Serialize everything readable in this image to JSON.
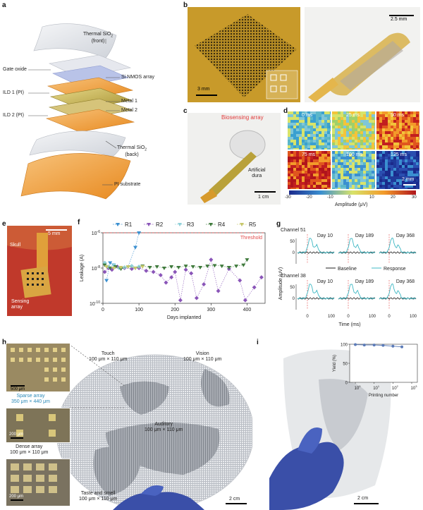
{
  "panel_labels": {
    "a": "a",
    "b": "b",
    "c": "c",
    "d": "d",
    "e": "e",
    "f": "f",
    "g": "g",
    "h": "h",
    "i": "i"
  },
  "a": {
    "layers": [
      {
        "label": "Thermal SiO",
        "sub": "2",
        "suffix": "",
        "note": "(front)"
      },
      {
        "label": "Gate oxide",
        "sub": "",
        "suffix": "",
        "note": ""
      },
      {
        "label": "Si NMOS array",
        "sub": "",
        "suffix": "",
        "note": ""
      },
      {
        "label": "ILD 1 (PI)",
        "sub": "",
        "suffix": "",
        "note": ""
      },
      {
        "label": "Metal 1",
        "sub": "",
        "suffix": "",
        "note": ""
      },
      {
        "label": "Metal 2",
        "sub": "",
        "suffix": "",
        "note": ""
      },
      {
        "label": "ILD 2 (PI)",
        "sub": "",
        "suffix": "",
        "note": ""
      },
      {
        "label": "Thermal SiO",
        "sub": "2",
        "suffix": "",
        "note": "(back)"
      },
      {
        "label": "PI substrate",
        "sub": "",
        "suffix": "",
        "note": ""
      }
    ],
    "colors": {
      "sio2": "#e4e6ea",
      "nmos": "#b9c3e8",
      "pi": "#f0a13a",
      "metal": "#c9b458",
      "substrate": "#f2a33c"
    }
  },
  "b": {
    "scale_left": "3 mm",
    "scale_right": "2.5 mm"
  },
  "c": {
    "title": "Biosensing array",
    "dura_line1": "Artificial",
    "dura_line2": "dura",
    "scale": "1 cm"
  },
  "d": {
    "frames": [
      "0 ms",
      "25 ms",
      "50 ms",
      "75 ms",
      "100 ms",
      "125 ms"
    ],
    "colorbar_ticks": [
      "-30",
      "-20",
      "-10",
      "0",
      "10",
      "20",
      "30"
    ],
    "colorbar_label": "Amplitude (μV)",
    "scale": "2 mm"
  },
  "e": {
    "scale": "5 mm",
    "skull": "Skull",
    "array_line1": "Sensing",
    "array_line2": "array"
  },
  "f": {
    "ylabel": "Leakage (A)",
    "xlabel": "Days implanted",
    "threshold_label": "Threshold",
    "xticks": [
      "0",
      "100",
      "200",
      "300",
      "400"
    ],
    "yticks": [
      {
        "base": "10",
        "exp": "-6"
      },
      {
        "base": "10",
        "exp": "-8"
      },
      {
        "base": "10",
        "exp": "-10"
      }
    ]
  },
  "g": {
    "channel_top": "Channel 51",
    "channel_bottom": "Channel 38",
    "days": [
      "Day 10",
      "Day 189",
      "Day 368"
    ],
    "ylabel": "Amplitude (μV)",
    "xlabel": "Time (ms)",
    "yticks": [
      "50",
      "0"
    ],
    "xticks": [
      "0",
      "100"
    ],
    "legend_baseline": "Baseline",
    "legend_response": "Response"
  },
  "h": {
    "scale_inset1": "500 μm",
    "sparse_line1": "Sparse array",
    "sparse_line2": "350 μm × 440 μm",
    "scale_inset2": "200 μm",
    "dense_line1": "Dense array",
    "dense_line2": "100 μm × 110 μm",
    "scale_inset3": "200 μm",
    "regions": [
      {
        "line1": "Touch",
        "line2": "100 μm × 110 μm"
      },
      {
        "line1": "Vision",
        "line2": "100 μm × 110 μm"
      },
      {
        "line1": "Auditory",
        "line2": "100 μm × 110 μm"
      },
      {
        "line1": "Taste and smell",
        "line2": "100 μm × 110 μm"
      }
    ],
    "scale": "2 cm"
  },
  "i": {
    "ylabel": "Yield (%)",
    "xlabel": "Printing number",
    "yticks": [
      "100",
      "50",
      "0"
    ],
    "xticks": [
      {
        "base": "10",
        "exp": "0"
      },
      {
        "base": "10",
        "exp": "1"
      },
      {
        "base": "10",
        "exp": "2"
      },
      {
        "base": "10",
        "exp": "3"
      }
    ],
    "scale": "2 cm"
  },
  "chart_data": [
    {
      "panel": "f",
      "type": "scatter",
      "ylabel": "Leakage (A)",
      "xlabel": "Days implanted",
      "xlim": [
        0,
        450
      ],
      "ylim": [
        1e-10,
        1e-06
      ],
      "log_y": true,
      "threshold": 1e-06,
      "legend_placement": "top",
      "series": [
        {
          "name": "R1",
          "color": "#3a8fd0",
          "points": [
            [
              10,
              2e-09
            ],
            [
              20,
              2e-08
            ],
            [
              30,
              1.5e-08
            ],
            [
              50,
              1.1e-08
            ],
            [
              70,
              1.2e-08
            ],
            [
              90,
              1.5e-07
            ],
            [
              100,
              1e-06
            ]
          ]
        },
        {
          "name": "R2",
          "color": "#8a55b8",
          "points": [
            [
              5,
              6e-09
            ],
            [
              15,
              1e-08
            ],
            [
              25,
              8e-09
            ],
            [
              40,
              1.2e-08
            ],
            [
              60,
              1e-08
            ],
            [
              80,
              9e-09
            ],
            [
              100,
              1e-08
            ],
            [
              120,
              7e-09
            ],
            [
              140,
              6e-09
            ],
            [
              160,
              4e-09
            ],
            [
              175,
              1.5e-09
            ],
            [
              190,
              3e-09
            ],
            [
              200,
              6e-09
            ],
            [
              215,
              1.5e-10
            ],
            [
              230,
              8e-09
            ],
            [
              245,
              5e-09
            ],
            [
              260,
              2e-10
            ],
            [
              280,
              1.2e-09
            ],
            [
              300,
              3e-08
            ],
            [
              320,
              5e-10
            ],
            [
              350,
              9e-09
            ],
            [
              380,
              2e-09
            ],
            [
              395,
              1.5e-10
            ],
            [
              420,
              8e-10
            ],
            [
              440,
              3e-09
            ]
          ]
        },
        {
          "name": "R3",
          "color": "#8fd0d8",
          "points": [
            [
              5,
              2e-08
            ],
            [
              15,
              1.2e-08
            ],
            [
              30,
              1.5e-08
            ],
            [
              45,
              1e-08
            ],
            [
              60,
              1.1e-08
            ],
            [
              80,
              1.3e-08
            ],
            [
              100,
              1.2e-08
            ]
          ]
        },
        {
          "name": "R4",
          "color": "#3f7a3c",
          "points": [
            [
              5,
              1.5e-08
            ],
            [
              20,
              1e-08
            ],
            [
              35,
              1.2e-08
            ],
            [
              50,
              9e-09
            ],
            [
              70,
              1.2e-08
            ],
            [
              90,
              1e-08
            ],
            [
              110,
              1.3e-08
            ],
            [
              130,
              1.1e-08
            ],
            [
              150,
              1.2e-08
            ],
            [
              170,
              1e-08
            ],
            [
              190,
              1.2e-08
            ],
            [
              210,
              1.1e-08
            ],
            [
              230,
              1.3e-08
            ],
            [
              250,
              1.2e-08
            ],
            [
              270,
              1.1e-08
            ],
            [
              290,
              1.3e-08
            ],
            [
              310,
              1.4e-08
            ],
            [
              330,
              1.3e-08
            ],
            [
              350,
              1.1e-08
            ],
            [
              370,
              1.3e-08
            ],
            [
              390,
              1.5e-08
            ],
            [
              400,
              3e-08
            ]
          ]
        },
        {
          "name": "R5",
          "color": "#c7c76a",
          "points": [
            [
              10,
              1.2e-08
            ],
            [
              30,
              1e-08
            ],
            [
              50,
              1.1e-08
            ],
            [
              70,
              1.2e-08
            ],
            [
              90,
              1e-08
            ],
            [
              110,
              1.2e-08
            ]
          ]
        }
      ]
    },
    {
      "panel": "i",
      "type": "line",
      "ylabel": "Yield (%)",
      "xlabel": "Printing number",
      "log_x": true,
      "xlim": [
        0.5,
        2000
      ],
      "ylim": [
        0,
        100
      ],
      "x": [
        1,
        3,
        10,
        30,
        100,
        300
      ],
      "values": [
        99,
        98,
        98,
        97,
        95,
        93
      ],
      "color": "#5b7bb8"
    }
  ]
}
